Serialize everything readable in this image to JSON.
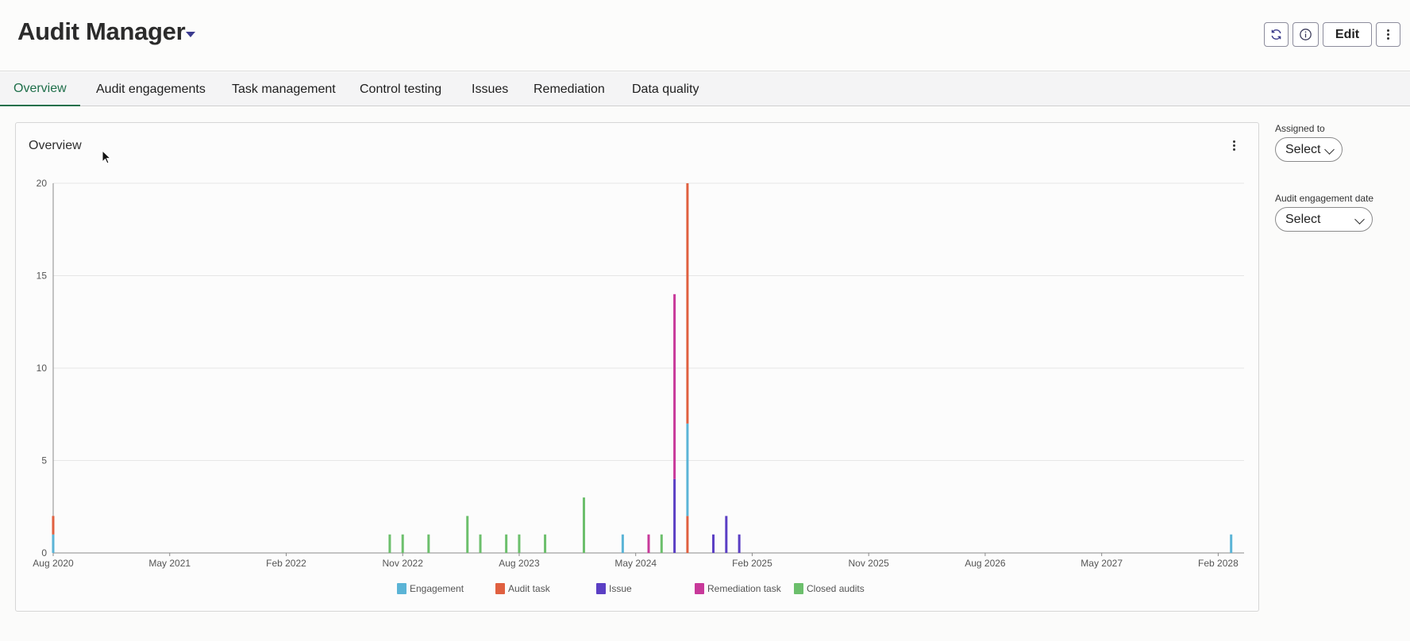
{
  "header": {
    "title": "Audit Manager",
    "edit_label": "Edit",
    "icons": [
      "refresh-icon",
      "info-icon",
      "more-vertical-icon"
    ]
  },
  "tabs": [
    {
      "label": "Overview",
      "active": true
    },
    {
      "label": "Audit engagements",
      "active": false
    },
    {
      "label": "Task management",
      "active": false
    },
    {
      "label": "Control testing",
      "active": false
    },
    {
      "label": "Issues",
      "active": false
    },
    {
      "label": "Remediation",
      "active": false
    },
    {
      "label": "Data quality",
      "active": false
    }
  ],
  "panel": {
    "title": "Overview"
  },
  "filters": {
    "assigned_to": {
      "label": "Assigned to",
      "value": "Select"
    },
    "audit_engagement_date": {
      "label": "Audit engagement date",
      "value": "Select"
    }
  },
  "chart_data": {
    "type": "bar",
    "stacked": true,
    "x_ticks": [
      "Aug 2020",
      "May 2021",
      "Feb 2022",
      "Nov 2022",
      "Aug 2023",
      "May 2024",
      "Feb 2025",
      "Nov 2025",
      "Aug 2026",
      "May 2027",
      "Feb 2028"
    ],
    "x_range": [
      "2020-08",
      "2028-04"
    ],
    "ylim": [
      0,
      20
    ],
    "y_ticks": [
      0,
      5,
      10,
      15,
      20
    ],
    "grid": true,
    "legend_position": "bottom-center",
    "series": [
      {
        "name": "Engagement",
        "color": "#5bb4d6"
      },
      {
        "name": "Audit task",
        "color": "#e06040"
      },
      {
        "name": "Issue",
        "color": "#5b3fc4"
      },
      {
        "name": "Remediation task",
        "color": "#c8399a"
      },
      {
        "name": "Closed audits",
        "color": "#6cbf6c"
      }
    ],
    "bars": [
      {
        "date": "2020-08",
        "segments": [
          {
            "series": "Engagement",
            "value": 1
          },
          {
            "series": "Audit task",
            "value": 1
          }
        ]
      },
      {
        "date": "2022-10",
        "segments": [
          {
            "series": "Closed audits",
            "value": 1
          }
        ]
      },
      {
        "date": "2022-11",
        "segments": [
          {
            "series": "Closed audits",
            "value": 1
          }
        ]
      },
      {
        "date": "2023-01",
        "segments": [
          {
            "series": "Closed audits",
            "value": 1
          }
        ]
      },
      {
        "date": "2023-04",
        "segments": [
          {
            "series": "Closed audits",
            "value": 2
          }
        ]
      },
      {
        "date": "2023-05",
        "segments": [
          {
            "series": "Closed audits",
            "value": 1
          }
        ]
      },
      {
        "date": "2023-07",
        "segments": [
          {
            "series": "Closed audits",
            "value": 1
          }
        ]
      },
      {
        "date": "2023-08",
        "segments": [
          {
            "series": "Closed audits",
            "value": 1
          }
        ]
      },
      {
        "date": "2023-10",
        "segments": [
          {
            "series": "Closed audits",
            "value": 1
          }
        ]
      },
      {
        "date": "2024-01",
        "segments": [
          {
            "series": "Closed audits",
            "value": 3
          }
        ]
      },
      {
        "date": "2024-04",
        "segments": [
          {
            "series": "Engagement",
            "value": 1
          }
        ]
      },
      {
        "date": "2024-06",
        "segments": [
          {
            "series": "Remediation task",
            "value": 1
          }
        ]
      },
      {
        "date": "2024-07",
        "segments": [
          {
            "series": "Closed audits",
            "value": 1
          }
        ]
      },
      {
        "date": "2024-08",
        "segments": [
          {
            "series": "Issue",
            "value": 4
          },
          {
            "series": "Remediation task",
            "value": 10
          }
        ]
      },
      {
        "date": "2024-09",
        "segments": [
          {
            "series": "Audit task",
            "value": 2
          },
          {
            "series": "Engagement",
            "value": 5
          },
          {
            "series": "Audit task",
            "value": 13
          }
        ]
      },
      {
        "date": "2024-11",
        "segments": [
          {
            "series": "Issue",
            "value": 1
          }
        ]
      },
      {
        "date": "2024-12",
        "segments": [
          {
            "series": "Issue",
            "value": 2
          }
        ]
      },
      {
        "date": "2025-01",
        "segments": [
          {
            "series": "Issue",
            "value": 1
          }
        ]
      },
      {
        "date": "2028-03",
        "segments": [
          {
            "series": "Engagement",
            "value": 1
          }
        ]
      }
    ]
  }
}
